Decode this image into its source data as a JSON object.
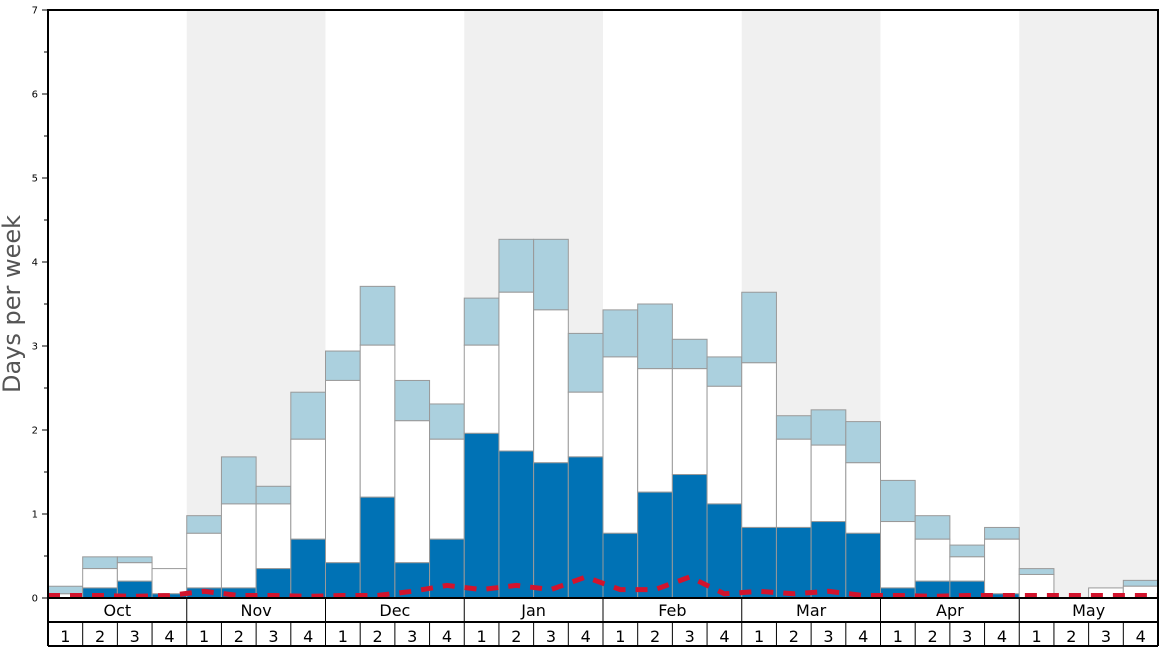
{
  "chart_data": {
    "type": "bar",
    "ylabel": "Days per week",
    "ylim": [
      0,
      7
    ],
    "yticks": [
      "0",
      "1",
      "2",
      "3",
      "4",
      "5",
      "6",
      "7"
    ],
    "months": [
      "Oct",
      "Nov",
      "Dec",
      "Jan",
      "Feb",
      "Mar",
      "Apr",
      "May"
    ],
    "week_labels": [
      "1",
      "2",
      "3",
      "4"
    ],
    "stacked": true,
    "grid": false,
    "colors": {
      "dark": "#0072b5",
      "white": "#ffffff",
      "light": "#abd0de",
      "line": "#d2142d",
      "shade": "#f0f0f0"
    },
    "series": [
      {
        "key": "dark",
        "values": [
          0.0,
          0.12,
          0.2,
          0.05,
          0.12,
          0.12,
          0.35,
          0.7,
          0.42,
          1.2,
          0.42,
          0.7,
          1.96,
          1.75,
          1.61,
          1.68,
          0.77,
          1.26,
          1.47,
          1.12,
          0.84,
          0.84,
          0.91,
          0.77,
          0.12,
          0.2,
          0.2,
          0.05,
          0.0,
          0.0,
          0.0,
          0.0
        ]
      },
      {
        "key": "white",
        "values": [
          0.05,
          0.23,
          0.22,
          0.3,
          0.65,
          1.0,
          0.77,
          1.19,
          2.17,
          1.81,
          1.69,
          1.19,
          1.05,
          1.89,
          1.82,
          0.77,
          2.1,
          1.47,
          1.26,
          1.4,
          1.96,
          1.05,
          0.91,
          0.84,
          0.79,
          0.5,
          0.29,
          0.65,
          0.28,
          0.0,
          0.12,
          0.14
        ],
        "totals": [
          0.05,
          0.35,
          0.42,
          0.35,
          0.77,
          1.12,
          1.12,
          1.89,
          2.59,
          3.01,
          2.11,
          1.89,
          3.01,
          3.64,
          3.43,
          2.45,
          2.87,
          2.73,
          2.73,
          2.52,
          2.8,
          1.89,
          1.82,
          1.61,
          0.91,
          0.7,
          0.49,
          0.7,
          0.28,
          0.0,
          0.12,
          0.14
        ]
      },
      {
        "key": "light",
        "values": [
          0.09,
          0.14,
          0.07,
          0.0,
          0.21,
          0.56,
          0.21,
          0.56,
          0.35,
          0.7,
          0.48,
          0.42,
          0.56,
          0.63,
          0.84,
          0.7,
          0.56,
          0.77,
          0.35,
          0.35,
          0.84,
          0.28,
          0.42,
          0.49,
          0.49,
          0.28,
          0.14,
          0.14,
          0.07,
          0.0,
          0.0,
          0.07
        ],
        "totals": [
          0.14,
          0.49,
          0.49,
          0.35,
          0.98,
          1.68,
          1.33,
          2.45,
          2.94,
          3.71,
          2.59,
          2.31,
          3.57,
          4.27,
          4.27,
          3.15,
          3.43,
          3.5,
          3.08,
          2.87,
          3.64,
          2.17,
          2.24,
          2.1,
          1.4,
          0.98,
          0.63,
          0.84,
          0.35,
          0.0,
          0.12,
          0.21
        ]
      },
      {
        "key": "line",
        "style": "dashed",
        "values": [
          0.03,
          0.03,
          0.02,
          0.03,
          0.08,
          0.03,
          0.03,
          0.02,
          0.03,
          0.03,
          0.08,
          0.15,
          0.1,
          0.15,
          0.1,
          0.25,
          0.1,
          0.1,
          0.25,
          0.05,
          0.08,
          0.05,
          0.08,
          0.03,
          0.03,
          0.02,
          0.03,
          0.03,
          0.03,
          0.03,
          0.03,
          0.03
        ]
      }
    ]
  }
}
